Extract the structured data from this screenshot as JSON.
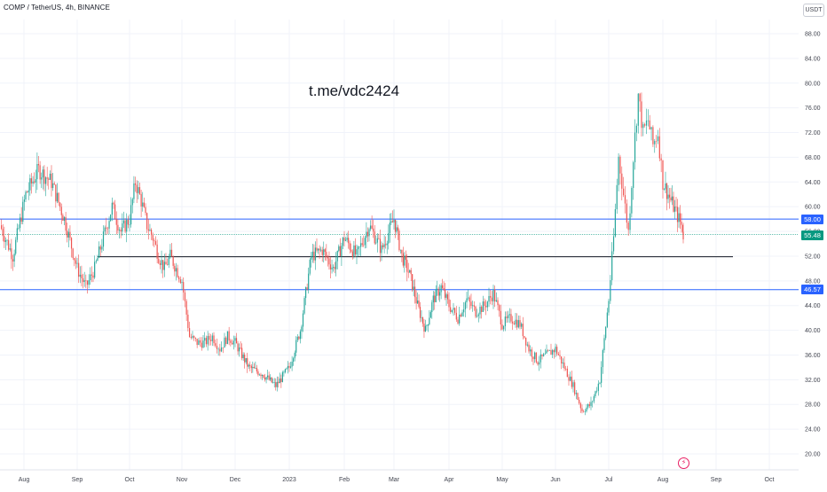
{
  "header": {
    "symbol_title": "COMP / TetherUS, 4h, BINANCE",
    "currency_button": "USDT"
  },
  "watermark_text": "t.me/vdc2424",
  "event_icon": "lightning-icon",
  "colors": {
    "up": "#26a69a",
    "down": "#ef5350",
    "resistance_line": "#2962ff",
    "current_price": "#089981",
    "support_line": "#131722"
  },
  "chart_data": {
    "type": "candlestick",
    "title": "COMP / TetherUS, 4h, BINANCE",
    "ylim": [
      18,
      90
    ],
    "y_ticks": [
      20,
      24,
      28,
      32,
      36,
      40,
      44,
      48,
      52,
      56,
      60,
      64,
      68,
      72,
      76,
      80,
      84,
      88
    ],
    "x_ticks": [
      "Aug",
      "Sep",
      "Oct",
      "Nov",
      "Dec",
      "2023",
      "Feb",
      "Mar",
      "Apr",
      "May",
      "Jun",
      "Jul",
      "Aug",
      "Sep",
      "Oct"
    ],
    "grid": true,
    "horizontal_levels": [
      {
        "price": 58.0,
        "label": "58.00",
        "kind": "resistance"
      },
      {
        "price": 55.48,
        "label": "55.48",
        "kind": "current"
      },
      {
        "price": 46.57,
        "label": "46.57",
        "kind": "support"
      },
      {
        "price": 51.9,
        "kind": "drawn-line"
      }
    ],
    "price_path": [
      [
        "Aug",
        57
      ],
      [
        "Aug",
        52
      ],
      [
        "Aug",
        62
      ],
      [
        "Aug",
        66
      ],
      [
        "Aug",
        64
      ],
      [
        "Aug",
        58
      ],
      [
        "Sep",
        50
      ],
      [
        "Sep",
        47
      ],
      [
        "Sep",
        50
      ],
      [
        "Sep",
        55
      ],
      [
        "Sep",
        60
      ],
      [
        "Sep",
        56
      ],
      [
        "Oct",
        58
      ],
      [
        "Oct",
        64
      ],
      [
        "Oct",
        61
      ],
      [
        "Oct",
        57
      ],
      [
        "Oct",
        55
      ],
      [
        "Oct",
        52
      ],
      [
        "Oct",
        50
      ],
      [
        "Oct",
        52
      ],
      [
        "Oct",
        50
      ],
      [
        "Nov",
        48
      ],
      [
        "Nov",
        39
      ],
      [
        "Nov",
        38
      ],
      [
        "Nov",
        38
      ],
      [
        "Nov",
        39
      ],
      [
        "Nov",
        37
      ],
      [
        "Nov",
        39
      ],
      [
        "Dec",
        38
      ],
      [
        "Dec",
        34
      ],
      [
        "Dec",
        33
      ],
      [
        "Dec",
        31
      ],
      [
        "2023",
        34
      ],
      [
        "2023",
        40
      ],
      [
        "2023",
        52
      ],
      [
        "2023",
        53
      ],
      [
        "2023",
        50
      ],
      [
        "Feb",
        55
      ],
      [
        "Feb",
        52
      ],
      [
        "Feb",
        57
      ],
      [
        "Feb",
        53
      ],
      [
        "Mar",
        58
      ],
      [
        "Mar",
        52
      ],
      [
        "Mar",
        49
      ],
      [
        "Mar",
        44
      ],
      [
        "Mar",
        40
      ],
      [
        "Mar",
        45
      ],
      [
        "Mar",
        47
      ],
      [
        "Apr",
        44
      ],
      [
        "Apr",
        42
      ],
      [
        "Apr",
        45
      ],
      [
        "Apr",
        43
      ],
      [
        "Apr",
        44
      ],
      [
        "Apr",
        46
      ],
      [
        "May",
        41
      ],
      [
        "May",
        42
      ],
      [
        "May",
        41
      ],
      [
        "May",
        37
      ],
      [
        "May",
        35
      ],
      [
        "May",
        36
      ],
      [
        "Jun",
        37
      ],
      [
        "Jun",
        34
      ],
      [
        "Jun",
        31
      ],
      [
        "Jun",
        27
      ],
      [
        "Jun",
        28
      ],
      [
        "Jun",
        32
      ],
      [
        "Jul",
        45
      ],
      [
        "Jul",
        55
      ],
      [
        "Jul",
        68
      ],
      [
        "Jul",
        62
      ],
      [
        "Jul",
        56
      ],
      [
        "Jul",
        68
      ],
      [
        "Jul",
        78
      ],
      [
        "Jul",
        72
      ],
      [
        "Jul",
        74
      ],
      [
        "Jul",
        70
      ],
      [
        "Jul",
        72
      ],
      [
        "Aug",
        64
      ],
      [
        "Aug",
        60
      ],
      [
        "Aug",
        56
      ],
      [
        "Aug",
        55
      ],
      [
        "Aug",
        55.5
      ]
    ]
  }
}
